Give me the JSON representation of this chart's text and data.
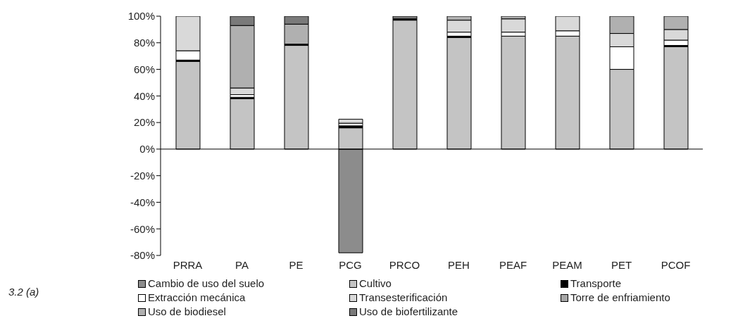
{
  "chart_data": {
    "type": "bar",
    "stacked": true,
    "categories": [
      "PRRA",
      "PA",
      "PE",
      "PCG",
      "PRCO",
      "PEH",
      "PEAF",
      "PEAM",
      "PET",
      "PCOF"
    ],
    "series": [
      {
        "name": "Cambio de uso del suelo",
        "color": "#8c8c8c",
        "values": [
          null,
          null,
          null,
          -78,
          null,
          null,
          null,
          null,
          null,
          null
        ]
      },
      {
        "name": "Cultivo",
        "color": "#c4c4c4",
        "values": [
          66,
          38,
          78,
          16,
          97,
          84,
          85,
          85,
          60,
          77
        ]
      },
      {
        "name": "Transporte",
        "color": "#000000",
        "values": [
          1,
          1,
          1,
          1.5,
          1,
          1,
          null,
          null,
          null,
          1
        ]
      },
      {
        "name": "Extracción mecánica",
        "color": "#ffffff",
        "values": [
          7,
          2,
          null,
          2,
          null,
          3,
          3,
          4,
          17,
          4
        ]
      },
      {
        "name": "Transesterificación",
        "color": "#d9d9d9",
        "values": [
          26,
          5,
          null,
          3,
          null,
          9,
          10,
          11,
          10,
          8
        ]
      },
      {
        "name": "Torre de enfriamiento",
        "color": "#a6a6a6",
        "values": [
          null,
          null,
          null,
          null,
          null,
          null,
          null,
          null,
          null,
          null
        ]
      },
      {
        "name": "Uso de biodiesel",
        "color": "#b0b0b0",
        "values": [
          null,
          47,
          15,
          null,
          null,
          3,
          2,
          null,
          13,
          10
        ]
      },
      {
        "name": "Uso de biofertilizante",
        "color": "#7a7a7a",
        "values": [
          null,
          7,
          6,
          null,
          2,
          null,
          null,
          null,
          null,
          null
        ]
      }
    ],
    "ylim": [
      -80,
      100
    ],
    "yticks": [
      {
        "value": -80,
        "label": "-80%"
      },
      {
        "value": -60,
        "label": "-60%"
      },
      {
        "value": -40,
        "label": "-40%"
      },
      {
        "value": -20,
        "label": "-20%"
      },
      {
        "value": 0,
        "label": "0%"
      },
      {
        "value": 20,
        "label": "20%"
      },
      {
        "value": 40,
        "label": "40%"
      },
      {
        "value": 60,
        "label": "60%"
      },
      {
        "value": 80,
        "label": "80%"
      },
      {
        "value": 100,
        "label": "100%"
      }
    ],
    "legend": "bottom",
    "annotations": [
      "3.2 (a)"
    ]
  }
}
